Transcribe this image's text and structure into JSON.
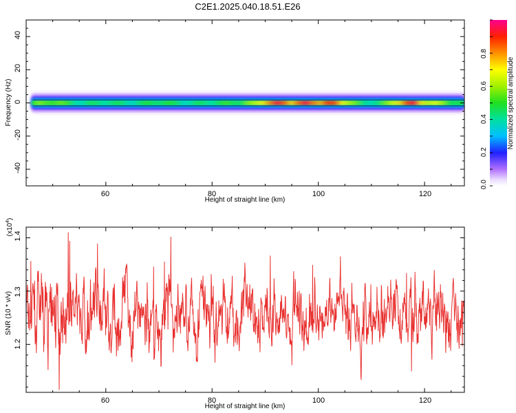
{
  "title": "C2E1.2025.040.18.51.E26",
  "chart_data": [
    {
      "type": "heatmap",
      "name": "spectrogram",
      "xlabel": "Height of straight line (km)",
      "ylabel": "Frequency (Hz)",
      "xlim": [
        45,
        127.5
      ],
      "ylim": [
        -50,
        50
      ],
      "x_ticks": [
        "60",
        "80",
        "100",
        "120"
      ],
      "y_ticks": [
        "40",
        "20",
        "0",
        "-20",
        "-40"
      ],
      "colorbar": {
        "label": "Normalized spectral amplitude",
        "range": [
          0,
          1
        ],
        "ticks": [
          "0.0",
          "0.2",
          "0.4",
          "0.6",
          "0.8"
        ]
      },
      "band": {
        "center_frequency_hz": 0,
        "half_width_hz": 2.5,
        "x": [
          46,
          50,
          55,
          60,
          65,
          70,
          75,
          80,
          85,
          88,
          90,
          95,
          100,
          105,
          108,
          112,
          115,
          118,
          122,
          127
        ],
        "amplitude": [
          0.55,
          0.65,
          0.45,
          0.5,
          0.45,
          0.55,
          0.45,
          0.5,
          0.55,
          0.65,
          0.95,
          0.92,
          0.96,
          0.85,
          0.45,
          0.5,
          0.9,
          0.95,
          0.7,
          0.5
        ]
      }
    },
    {
      "type": "line",
      "name": "snr",
      "xlabel": "Height of straight line (km)",
      "ylabel": "SNR (10 * v/v)",
      "y_multiplier": "(x10",
      "y_multiplier_exp": "4",
      "y_multiplier_close": ")",
      "xlim": [
        45,
        127.5
      ],
      "ylim": [
        1.11,
        1.42
      ],
      "x_ticks": [
        "60",
        "80",
        "100",
        "120"
      ],
      "y_ticks": [
        "1.4",
        "1.3",
        "1.2"
      ],
      "color": "#e8302e",
      "noise": {
        "samples": 1500,
        "mean": 1.255,
        "std": 0.045,
        "min": 1.115,
        "max": 1.42
      }
    }
  ]
}
